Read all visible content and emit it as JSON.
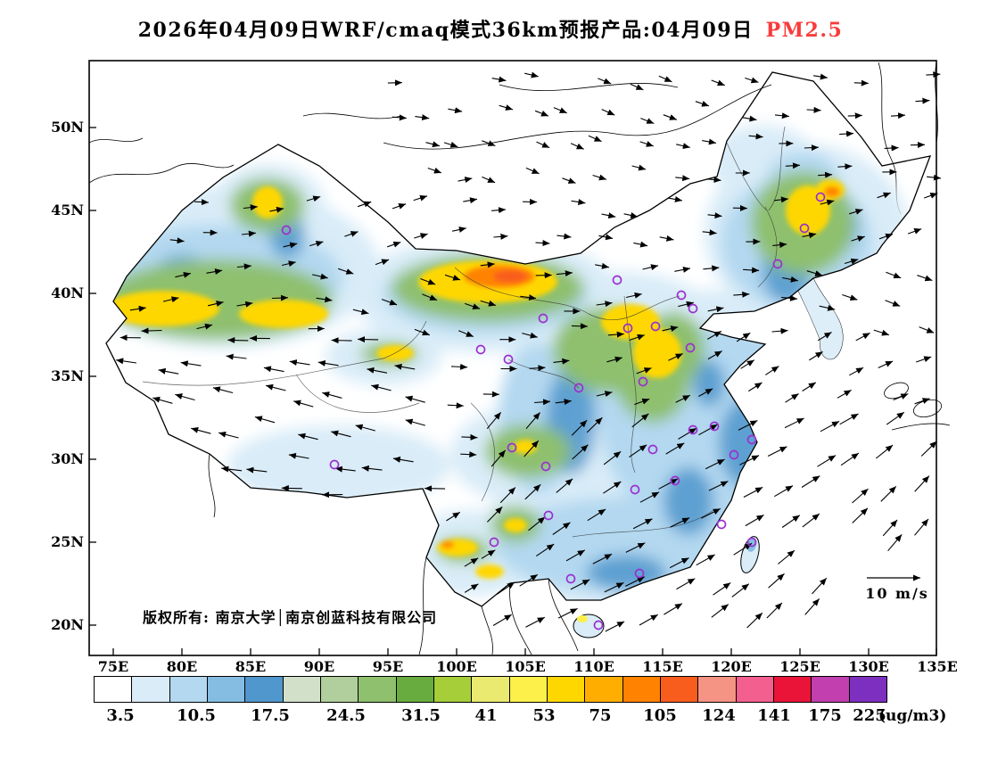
{
  "title": {
    "main": "2026年04月09日WRF/cmaq模式36km预报产品:04月09日",
    "pollutant": "PM2.5"
  },
  "map": {
    "lat_labels": [
      "50N",
      "45N",
      "40N",
      "35N",
      "30N",
      "25N",
      "20N"
    ],
    "lon_labels": [
      "75E",
      "80E",
      "85E",
      "90E",
      "95E",
      "100E",
      "105E",
      "110E",
      "115E",
      "120E",
      "125E",
      "130E",
      "135E"
    ],
    "copyright": "版权所有: 南京大学│南京创蓝科技有限公司",
    "wind_scale_label": "10 m/s"
  },
  "colorbar": {
    "tick_labels": [
      "3.5",
      "10.5",
      "17.5",
      "24.5",
      "31.5",
      "41",
      "53",
      "75",
      "105",
      "124",
      "141",
      "175",
      "225"
    ],
    "unit": "(ug/m3)",
    "colors": [
      "#ffffff",
      "#d9ecf8",
      "#b3d8f0",
      "#85bde2",
      "#4f97cc",
      "#d2e0ca",
      "#b0cf9c",
      "#8ec06e",
      "#68ac40",
      "#a6ce39",
      "#e9ea6f",
      "#fdf04a",
      "#ffd700",
      "#ffae00",
      "#ff8300",
      "#f95d1d",
      "#f59384",
      "#f35f8e",
      "#e91438",
      "#c13fae",
      "#7d2fbf"
    ]
  },
  "accent_colors": {
    "pollutant_red": "#f93b3b",
    "city_marker_purple": "#9b30d0"
  }
}
